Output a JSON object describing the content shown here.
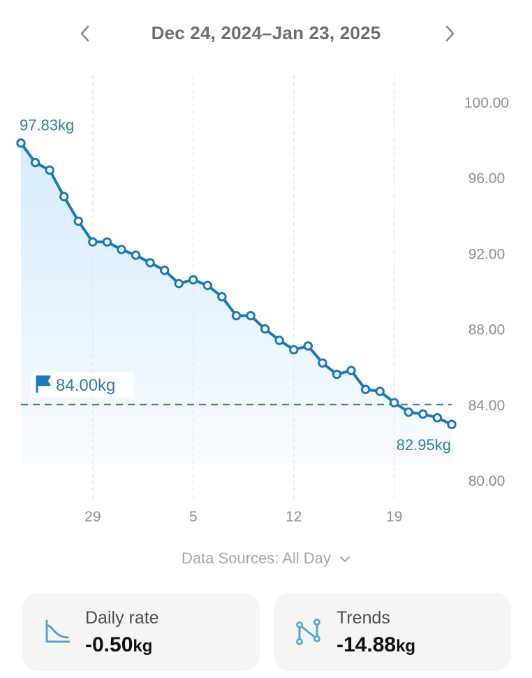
{
  "header": {
    "date_range": "Dec 24, 2024–Jan 23, 2025",
    "prev_icon": "chevron-left-icon",
    "next_icon": "chevron-right-icon"
  },
  "chart_data": {
    "type": "line",
    "unit": "kg",
    "x": [
      "2024-12-24",
      "2024-12-25",
      "2024-12-26",
      "2024-12-27",
      "2024-12-28",
      "2024-12-29",
      "2024-12-30",
      "2024-12-31",
      "2025-01-01",
      "2025-01-02",
      "2025-01-03",
      "2025-01-04",
      "2025-01-05",
      "2025-01-06",
      "2025-01-07",
      "2025-01-08",
      "2025-01-09",
      "2025-01-10",
      "2025-01-11",
      "2025-01-12",
      "2025-01-13",
      "2025-01-14",
      "2025-01-15",
      "2025-01-16",
      "2025-01-17",
      "2025-01-18",
      "2025-01-19",
      "2025-01-20",
      "2025-01-21",
      "2025-01-22",
      "2025-01-23"
    ],
    "values": [
      97.83,
      96.8,
      96.4,
      95.0,
      93.7,
      92.6,
      92.6,
      92.2,
      91.9,
      91.5,
      91.1,
      90.4,
      90.6,
      90.3,
      89.7,
      88.7,
      88.7,
      88.0,
      87.4,
      86.9,
      87.1,
      86.2,
      85.6,
      85.8,
      84.8,
      84.7,
      84.1,
      83.6,
      83.5,
      83.3,
      82.95
    ],
    "first_label": "97.83kg",
    "last_label": "82.95kg",
    "goal": 84.0,
    "goal_label": "84.00kg",
    "goal_icon": "flag-icon",
    "ylim": [
      80,
      100
    ],
    "y_ticks": [
      "100.00",
      "96.00",
      "92.00",
      "88.00",
      "84.00",
      "80.00"
    ],
    "x_ticks": [
      {
        "date": "2024-12-29",
        "label": "29"
      },
      {
        "date": "2025-01-05",
        "label": "5"
      },
      {
        "date": "2025-01-12",
        "label": "12"
      },
      {
        "date": "2025-01-19",
        "label": "19"
      }
    ],
    "grid": "vertical-dashed",
    "colors": {
      "line": "#1a7ab8",
      "fill": "#dff0fd",
      "goal": "#2f7f9e",
      "label": "#2d7fa3",
      "axis": "#8f8f8f"
    }
  },
  "data_source": {
    "label": "Data Sources: All Day",
    "icon": "chevron-down-icon"
  },
  "cards": {
    "daily_rate": {
      "label": "Daily rate",
      "value": "-0.50",
      "unit": "kg",
      "icon": "area-chart-icon"
    },
    "trends": {
      "label": "Trends",
      "value": "-14.88",
      "unit": "kg",
      "icon": "trend-nodes-icon"
    }
  }
}
